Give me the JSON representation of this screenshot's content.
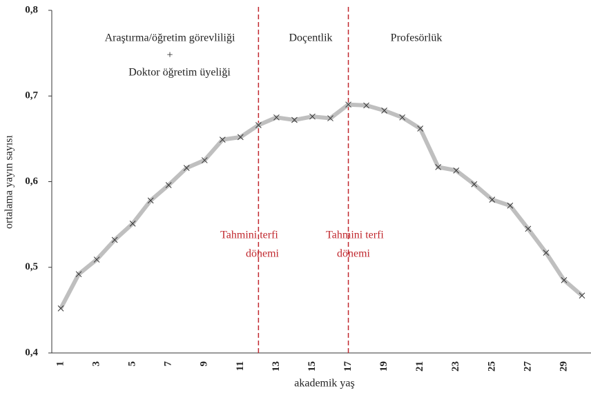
{
  "chart_data": {
    "type": "line",
    "xlabel": "akademik yaş",
    "ylabel": "ortalama yayın sayısı",
    "categories": [
      1,
      null,
      3,
      null,
      5,
      null,
      7,
      null,
      9,
      null,
      11,
      null,
      13,
      null,
      15,
      null,
      17,
      null,
      19,
      null,
      21,
      null,
      23,
      null,
      25,
      null,
      27,
      null,
      29,
      null
    ],
    "series": [
      {
        "color": "#bfbfbf",
        "marker_color": "#333333",
        "values": [
          0.452,
          0.492,
          0.509,
          0.532,
          0.551,
          0.578,
          0.596,
          0.616,
          0.625,
          0.649,
          0.652,
          0.666,
          0.675,
          0.672,
          0.676,
          0.674,
          0.69,
          0.689,
          0.683,
          0.675,
          0.662,
          0.617,
          0.613,
          0.597,
          0.579,
          0.572,
          0.545,
          0.517,
          0.485,
          0.467
        ]
      }
    ],
    "ylim": [
      0.4,
      0.8
    ],
    "yticks": [
      {
        "value": 0.4,
        "label": "0,4"
      },
      {
        "value": 0.5,
        "label": "0,5"
      },
      {
        "value": 0.6,
        "label": "0,6"
      },
      {
        "value": 0.7,
        "label": "0,7"
      },
      {
        "value": 0.8,
        "label": "0,8"
      }
    ],
    "vlines": [
      12,
      17
    ],
    "vline_color": "#c0272d",
    "annotations": [
      "Araştırma/öğretim görevliliği",
      "+",
      "Doktor öğretim üyeliği",
      "Doçentlik",
      "Profesörlük"
    ],
    "vline_labels": [
      [
        "Tahmini terfi",
        "dönemi"
      ],
      [
        "Tahmini terfi",
        "dönemi"
      ]
    ],
    "grid": false
  }
}
